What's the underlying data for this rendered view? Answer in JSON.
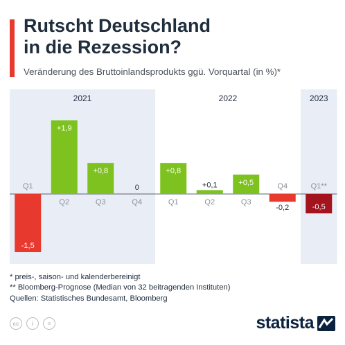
{
  "header": {
    "title_line1": "Rutscht Deutschland",
    "title_line2": "in die Rezession?",
    "subtitle": "Veränderung des Bruttoinlandsprodukts ggü. Vorquartal (in %)*"
  },
  "colors": {
    "accent": "#e8392f",
    "positive": "#7dc21e",
    "negative": "#e8392f",
    "forecast_negative": "#a3141e",
    "year_band": "#e9edf5",
    "title": "#1f2d3d"
  },
  "chart_data": {
    "type": "bar",
    "groups": [
      {
        "label": "2021",
        "categories": [
          "Q1",
          "Q2",
          "Q3",
          "Q4"
        ]
      },
      {
        "label": "2022",
        "categories": [
          "Q1",
          "Q2",
          "Q3",
          "Q4"
        ]
      },
      {
        "label": "2023",
        "categories": [
          "Q1**"
        ]
      }
    ],
    "categories": [
      "Q1",
      "Q2",
      "Q3",
      "Q4",
      "Q1",
      "Q2",
      "Q3",
      "Q4",
      "Q1**"
    ],
    "values": [
      -1.5,
      1.9,
      0.8,
      0,
      0.8,
      0.1,
      0.5,
      -0.2,
      -0.5
    ],
    "value_labels": [
      "-1,5",
      "+1,9",
      "+0,8",
      "0",
      "+0,8",
      "+0,1",
      "+0,5",
      "-0,2",
      "-0,5"
    ],
    "forecast": [
      false,
      false,
      false,
      false,
      false,
      false,
      false,
      false,
      true
    ],
    "ylim": [
      -1.6,
      2.1
    ],
    "xlabel": "",
    "ylabel": "",
    "shaded_groups": [
      "2021",
      "2023"
    ]
  },
  "footnotes": [
    "*   preis-, saison- und kalenderbereinigt",
    "** Bloomberg-Prognose (Median von 32 beitragenden Instituten)",
    "Quellen: Statistisches Bundesamt, Bloomberg"
  ],
  "license_icons": [
    "cc-icon",
    "by-icon",
    "nd-icon"
  ],
  "license_marks": [
    "cc",
    "i",
    "="
  ],
  "brand": "statista"
}
